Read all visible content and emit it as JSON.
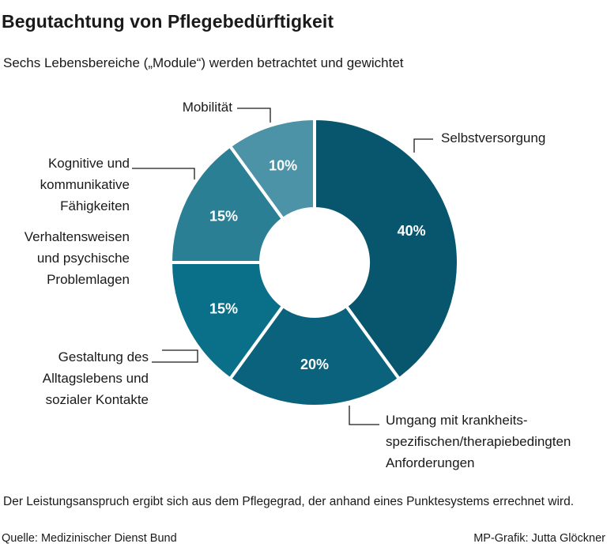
{
  "title": "Begutachtung von Pflegebedürftigkeit",
  "subtitle": "Sechs Lebensbereiche („Module“) werden betrachtet und gewichtet",
  "footnote": "Der Leistungsanspruch ergibt sich aus dem Pflegegrad, der anhand eines Punktesystems errechnet wird.",
  "source": "Quelle: Medizinischer Dienst Bund",
  "credit": "MP-Grafik: Jutta Glöckner",
  "chart_data": {
    "type": "pie",
    "variant": "donut",
    "title": "Begutachtung von Pflegebedürftigkeit",
    "subtitle": "Sechs Lebensbereiche („Module“) werden betrachtet und gewichtet",
    "slices": [
      {
        "label_lines": [
          "Selbstversorgung"
        ],
        "value": 40,
        "value_label": "40%",
        "color": "#07566e"
      },
      {
        "label_lines": [
          "Umgang mit krankheits-",
          "spezifischen/therapiebedingten",
          "Anforderungen"
        ],
        "value": 20,
        "value_label": "20%",
        "color": "#0b627c"
      },
      {
        "label_lines": [
          "Gestaltung des",
          "Alltagslebens und",
          "sozialer Kontakte"
        ],
        "value": 15,
        "value_label": "15%",
        "color": "#0a7089"
      },
      {
        "label_lines": [
          "Verhaltensweisen",
          "und psychische",
          "Problemlagen"
        ],
        "value": 0,
        "value_label": "",
        "color": "#0a7089"
      },
      {
        "label_lines": [
          "Kognitive und",
          "kommunikative",
          "Fähigkeiten"
        ],
        "value": 15,
        "value_label": "15%",
        "color": "#2a7f95"
      },
      {
        "label_lines": [
          "Mobilität"
        ],
        "value": 10,
        "value_label": "10%",
        "color": "#4c93a8"
      }
    ]
  }
}
